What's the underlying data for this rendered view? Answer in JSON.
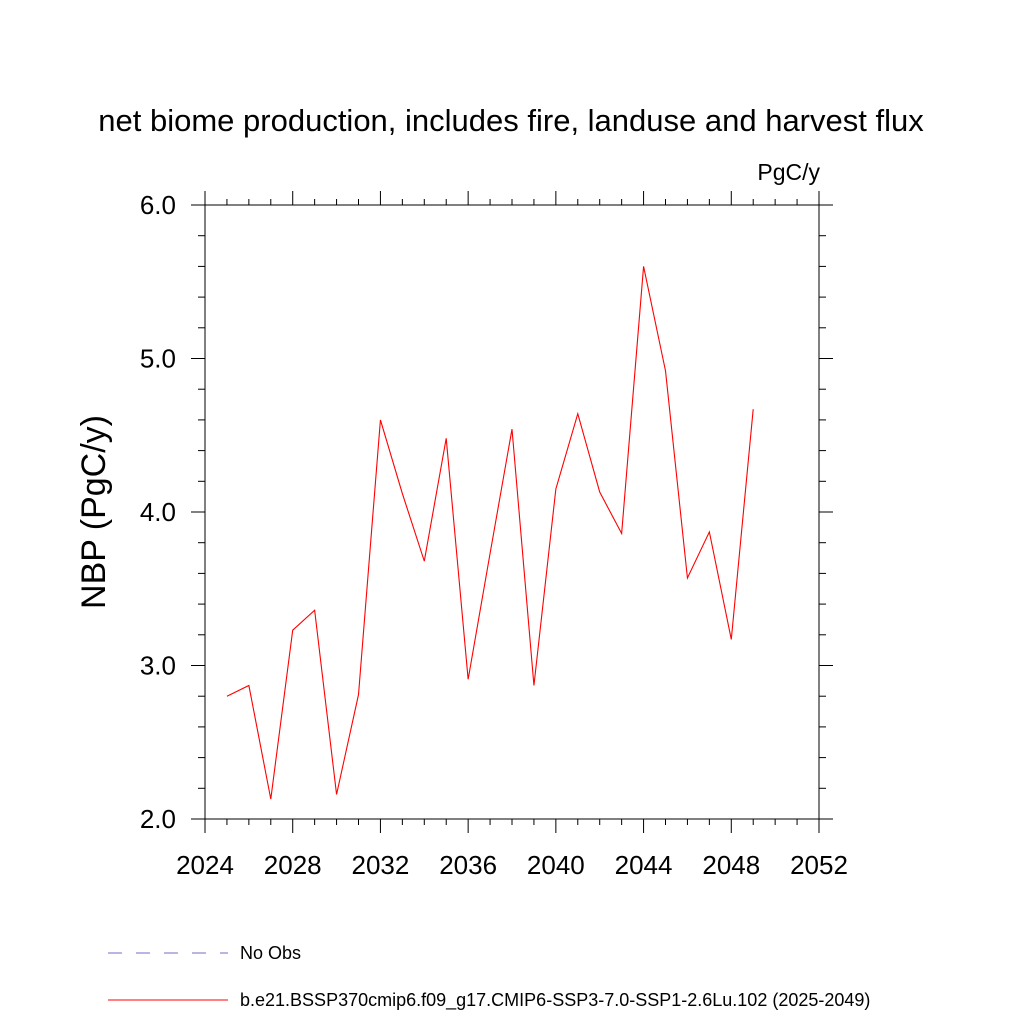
{
  "chart_data": {
    "type": "line",
    "title": "net biome production, includes fire, landuse and harvest flux",
    "units": "PgC/y",
    "ylabel": "NBP  (PgC/y)",
    "xlabel": "",
    "xlim": [
      2024,
      2052
    ],
    "ylim": [
      2.0,
      6.0
    ],
    "x_ticks": [
      "2024",
      "2028",
      "2032",
      "2036",
      "2040",
      "2044",
      "2048",
      "2052"
    ],
    "x_tick_values": [
      2024,
      2028,
      2032,
      2036,
      2040,
      2044,
      2048,
      2052
    ],
    "y_ticks": [
      "2.0",
      "3.0",
      "4.0",
      "5.0",
      "6.0"
    ],
    "y_tick_values": [
      2.0,
      3.0,
      4.0,
      5.0,
      6.0
    ],
    "grid": false,
    "legend_position": "bottom-left",
    "series": [
      {
        "name": "b.e21.BSSP370cmip6.f09_g17.CMIP6-SSP3-7.0-SSP1-2.6Lu.102 (2025-2049)",
        "color": "#ff0000",
        "style": "solid",
        "x": [
          2025,
          2026,
          2027,
          2028,
          2029,
          2030,
          2031,
          2032,
          2033,
          2034,
          2035,
          2036,
          2037,
          2038,
          2039,
          2040,
          2041,
          2042,
          2043,
          2044,
          2045,
          2046,
          2047,
          2048,
          2049
        ],
        "values": [
          2.8,
          2.87,
          2.13,
          3.23,
          3.36,
          2.16,
          2.81,
          4.6,
          4.12,
          3.68,
          4.48,
          2.91,
          3.73,
          4.54,
          2.87,
          4.15,
          4.64,
          4.13,
          3.86,
          5.6,
          4.92,
          3.57,
          3.87,
          3.17,
          4.67
        ]
      }
    ],
    "legend": [
      {
        "label": "No Obs",
        "color": "#7b68c8",
        "style": "dashed"
      },
      {
        "label": "b.e21.BSSP370cmip6.f09_g17.CMIP6-SSP3-7.0-SSP1-2.6Lu.102 (2025-2049)",
        "color": "#ff0000",
        "style": "solid"
      }
    ]
  }
}
